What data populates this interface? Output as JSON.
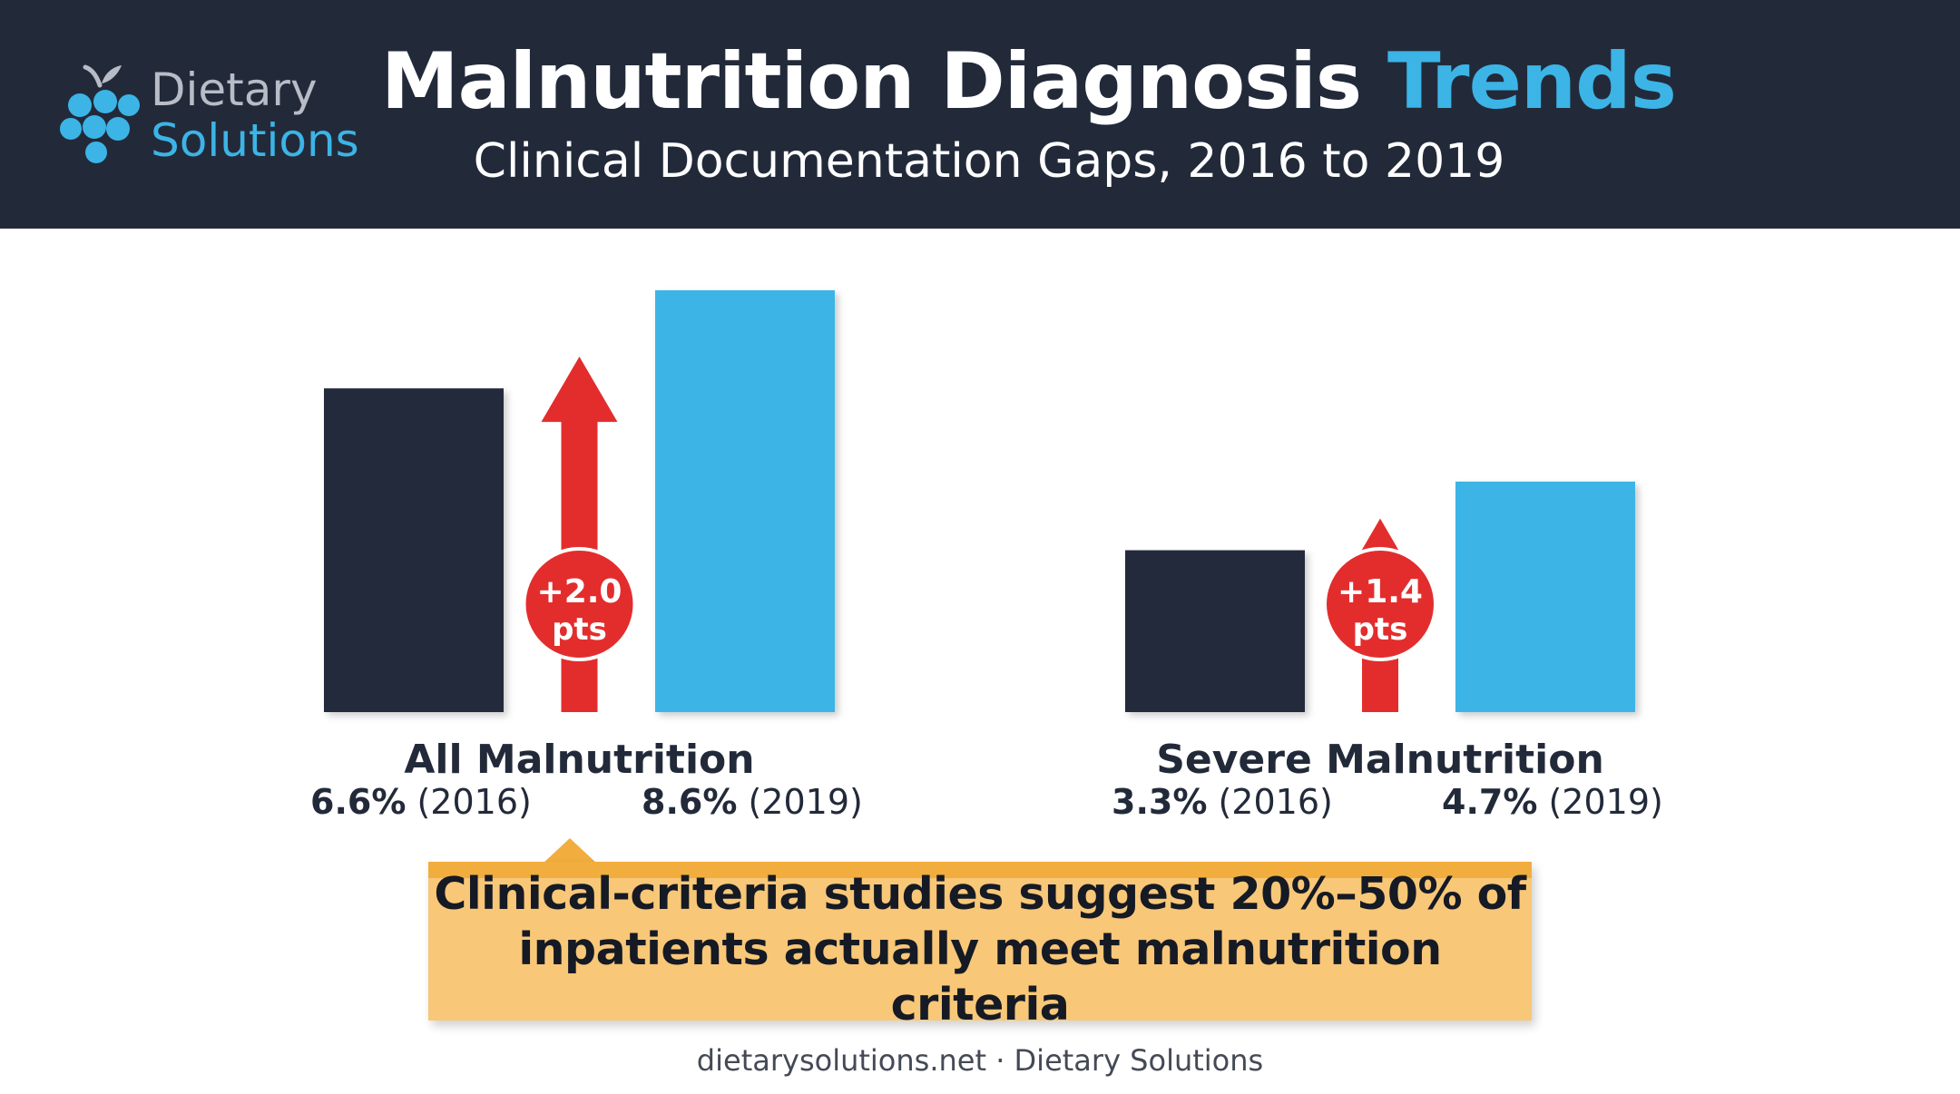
{
  "brand": {
    "name_line1": "Dietary",
    "name_line2": "Solutions",
    "logo_icon": "grape-cluster-icon",
    "colors": {
      "dark": "#222a3a",
      "blue": "#3cb4e6",
      "gray": "#b7bcc6"
    }
  },
  "header": {
    "title_main": "Malnutrition Diagnosis",
    "title_accent": "Trends",
    "subtitle": "Clinical Documentation Gaps, 2016 to 2019"
  },
  "chart_data": {
    "type": "bar",
    "categories": [
      "All Malnutrition",
      "Severe Malnutrition"
    ],
    "series": [
      {
        "year": "2016",
        "values": [
          6.6,
          3.3
        ],
        "color": "#222a3a"
      },
      {
        "year": "2019",
        "values": [
          8.6,
          4.7
        ],
        "color": "#3cb4e6"
      }
    ],
    "value_labels": [
      [
        "6.6%",
        "(2016)",
        "8.6%",
        "(2019)"
      ],
      [
        "3.3%",
        "(2016)",
        "4.7%",
        "(2019)"
      ]
    ],
    "changes": [
      {
        "line1": "+2.0",
        "line2": "pts",
        "value": 2.0
      },
      {
        "line1": "+1.4",
        "line2": "pts",
        "value": 1.4
      }
    ],
    "arrow_color": "#e32d2d",
    "ylim": [
      0,
      8.6
    ],
    "grid": false,
    "legend": "none"
  },
  "callout": {
    "line1": "Clinical-criteria studies suggest 20%–50% of",
    "line2": "inpatients actually meet malnutrition criteria",
    "colors": {
      "fill": "#f8c778",
      "border": "#f1ad3e"
    }
  },
  "footer": {
    "text": "dietarysolutions.net · Dietary Solutions"
  }
}
